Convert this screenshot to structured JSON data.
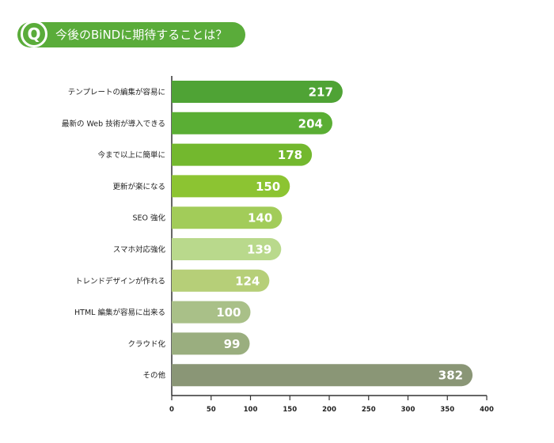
{
  "header": {
    "q_mark": "Q",
    "title": "今後のBiNDに期待することは？"
  },
  "chart_data": {
    "type": "bar",
    "orientation": "horizontal",
    "title": "今後のBiNDに期待することは？",
    "categories": [
      "テンプレートの編集が容易に",
      "最新の Web 技術が導入できる",
      "今まで以上に簡単に",
      "更新が楽になる",
      "SEO 強化",
      "スマホ対応強化",
      "トレンドデザインが作れる",
      "HTML 編集が容易に出来る",
      "クラウド化",
      "その他"
    ],
    "values": [
      217,
      204,
      178,
      150,
      140,
      139,
      124,
      100,
      99,
      382
    ],
    "bar_colors": [
      "#4fa335",
      "#5aae34",
      "#73b82e",
      "#8cc432",
      "#a2cc59",
      "#b9d98c",
      "#b6cf78",
      "#a9c088",
      "#9aae7f",
      "#8a9676"
    ],
    "xlim": [
      0,
      400
    ],
    "x_ticks": [
      0,
      50,
      100,
      150,
      200,
      250,
      300,
      350,
      400
    ],
    "grid": false
  }
}
